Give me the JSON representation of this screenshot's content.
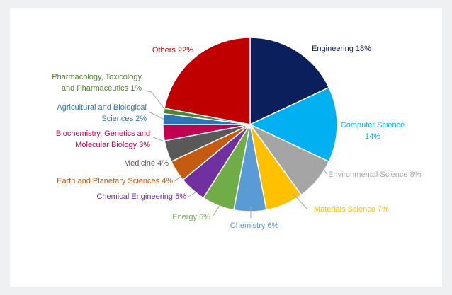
{
  "chart_data": {
    "type": "pie",
    "title": "",
    "start": "top, clockwise",
    "slices": [
      {
        "name": "Engineering",
        "value": 18,
        "color": "#0b1f5c",
        "label_lines": [
          "Engineering 18%"
        ]
      },
      {
        "name": "Computer Science",
        "value": 14,
        "color": "#00b0f0",
        "label_lines": [
          "Computer Science",
          "14%"
        ]
      },
      {
        "name": "Environmental Science",
        "value": 8,
        "color": "#a5a5a5",
        "label_lines": [
          "Environmental Science 8%"
        ]
      },
      {
        "name": "Materials Science",
        "value": 7,
        "color": "#ffc000",
        "label_lines": [
          "Materials Science 7%"
        ]
      },
      {
        "name": "Chemistry",
        "value": 6,
        "color": "#5b9bd5",
        "label_lines": [
          "Chemistry 6%"
        ]
      },
      {
        "name": "Energy",
        "value": 6,
        "color": "#70ad47",
        "label_lines": [
          "Energy 6%"
        ]
      },
      {
        "name": "Chemical Engineering",
        "value": 5,
        "color": "#7030a0",
        "label_lines": [
          "Chemical Engineering 5%"
        ]
      },
      {
        "name": "Earth and Planetary Sciences",
        "value": 4,
        "color": "#c55a11",
        "label_lines": [
          "Earth and Planetary Sciences 4%"
        ]
      },
      {
        "name": "Medicine",
        "value": 4,
        "color": "#595959",
        "label_lines": [
          "Medicine 4%"
        ]
      },
      {
        "name": "Biochemistry, Genetics and Molecular Biology",
        "value": 3,
        "color": "#c00050",
        "label_lines": [
          "Biochemistry, Genetics and",
          "Molecular Biology 3%"
        ]
      },
      {
        "name": "Agricultural and Biological Sciences",
        "value": 2,
        "color": "#2e75b6",
        "label_lines": [
          "Agricultural and Biological",
          "Sciences 2%"
        ]
      },
      {
        "name": "Pharmacology, Toxicology and Pharmaceutics",
        "value": 1,
        "color": "#548235",
        "label_lines": [
          "Pharmacology, Toxicology",
          "and Pharmaceutics 1%"
        ]
      },
      {
        "name": "Others",
        "value": 22,
        "color": "#c00000",
        "label_lines": [
          "Others 22%"
        ]
      }
    ]
  }
}
